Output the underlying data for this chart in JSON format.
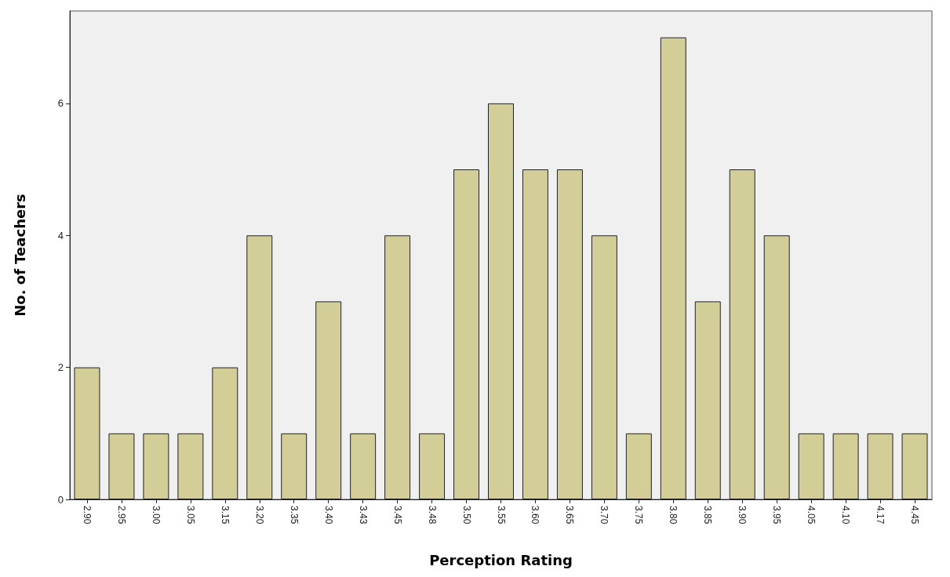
{
  "chart_data": {
    "type": "bar",
    "xlabel": "Perception Rating",
    "ylabel": "No. of Teachers",
    "categories": [
      "2.90",
      "2.95",
      "3.00",
      "3.05",
      "3.15",
      "3.20",
      "3.35",
      "3.40",
      "3.43",
      "3.45",
      "3.48",
      "3.50",
      "3.55",
      "3.60",
      "3.65",
      "3.70",
      "3.75",
      "3.80",
      "3.85",
      "3.90",
      "3.95",
      "4.05",
      "4.10",
      "4.17",
      "4.45"
    ],
    "values": [
      2,
      1,
      1,
      1,
      2,
      4,
      1,
      3,
      1,
      4,
      1,
      5,
      6,
      5,
      5,
      4,
      1,
      7,
      3,
      5,
      4,
      1,
      1,
      1,
      1
    ],
    "color": "#d3ce97",
    "ylim": [
      0,
      7.4
    ],
    "yticks": [
      0,
      2,
      4,
      6
    ],
    "grid": false
  }
}
